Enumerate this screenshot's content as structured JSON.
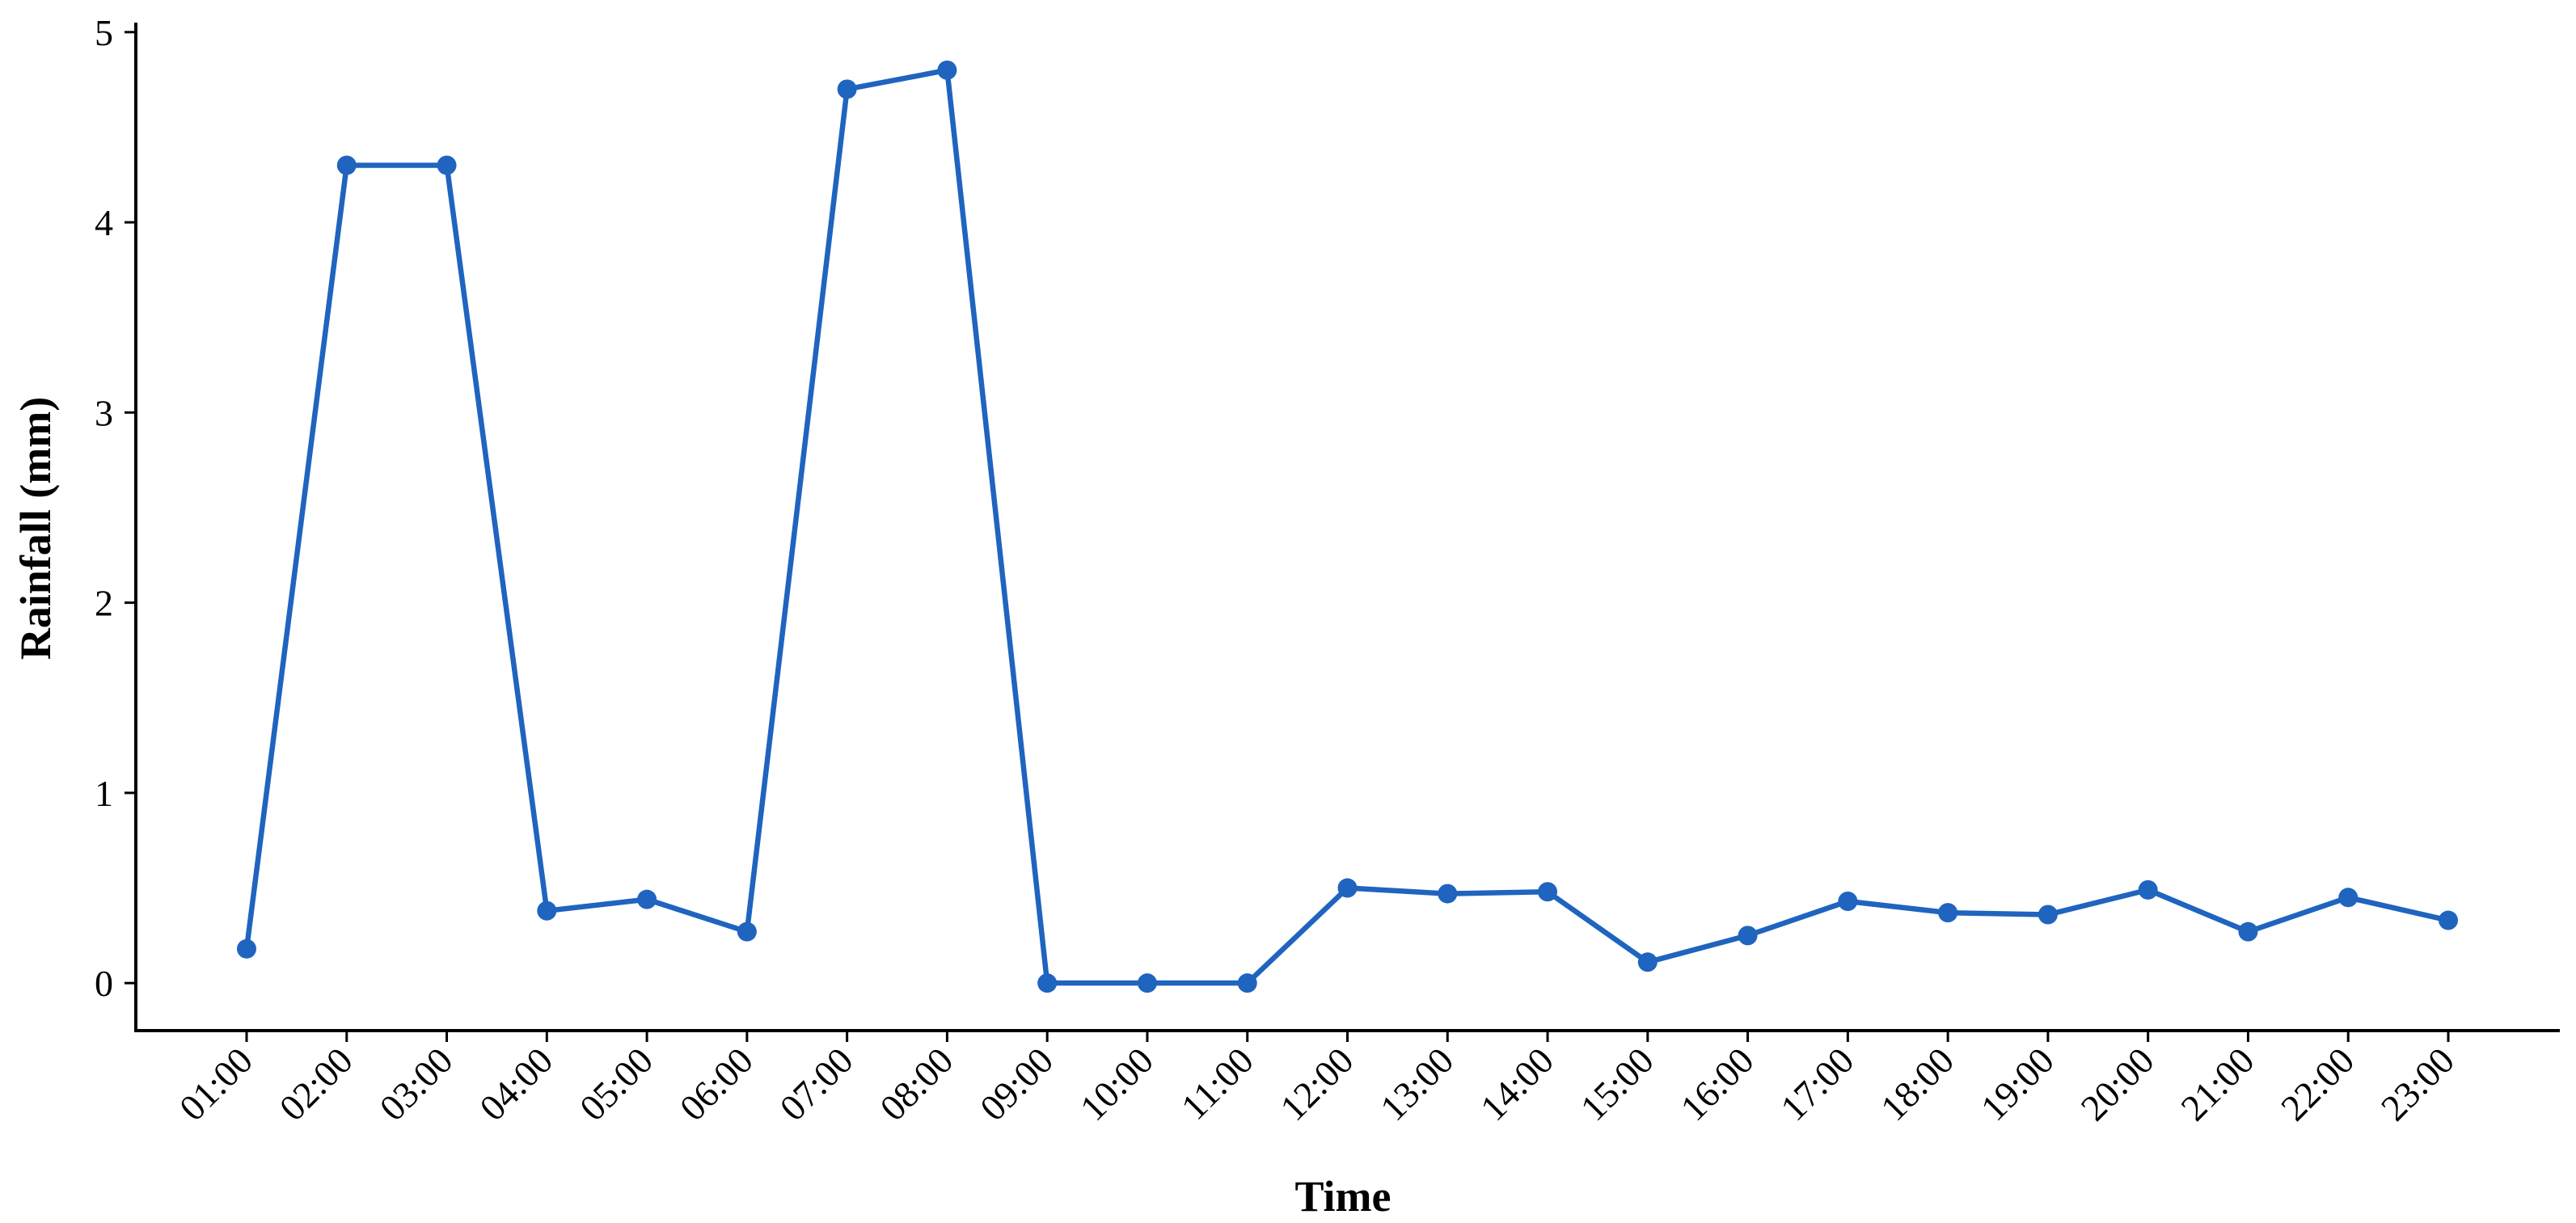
{
  "chart_data": {
    "type": "line",
    "title": "",
    "xlabel": "Time",
    "ylabel": "Rainfall (mm)",
    "categories": [
      "01:00",
      "02:00",
      "03:00",
      "04:00",
      "05:00",
      "06:00",
      "07:00",
      "08:00",
      "09:00",
      "10:00",
      "11:00",
      "12:00",
      "13:00",
      "14:00",
      "15:00",
      "16:00",
      "17:00",
      "18:00",
      "19:00",
      "20:00",
      "21:00",
      "22:00",
      "23:00"
    ],
    "series": [
      {
        "values": [
          0.18,
          4.3,
          4.3,
          0.38,
          0.44,
          0.27,
          4.7,
          4.8,
          0.0,
          0.0,
          0.0,
          0.5,
          0.47,
          0.48,
          0.11,
          0.25,
          0.43,
          0.37,
          0.36,
          0.49,
          0.27,
          0.45,
          0.33
        ],
        "color": "#1f64bf"
      }
    ],
    "ylim": [
      -0.25,
      5.05
    ],
    "yticks": [
      0,
      1,
      2,
      3,
      4,
      5
    ],
    "grid": false,
    "legend": "none"
  }
}
